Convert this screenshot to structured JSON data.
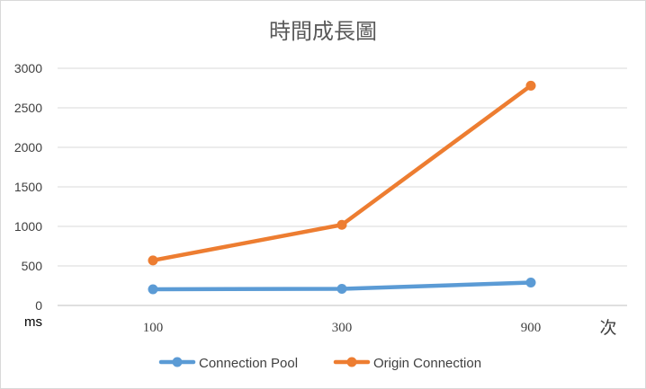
{
  "chart_data": {
    "type": "line",
    "title": "時間成長圖",
    "ylabel": "ms",
    "xlabel": "次",
    "categories": [
      "100",
      "300",
      "900"
    ],
    "ylim": [
      0,
      3000
    ],
    "yticks": [
      0,
      500,
      1000,
      1500,
      2000,
      2500,
      3000
    ],
    "grid": true,
    "legend_position": "bottom",
    "series": [
      {
        "name": "Connection Pool",
        "color": "#5b9bd5",
        "values": [
          205,
          210,
          290
        ]
      },
      {
        "name": "Origin Connection",
        "color": "#ed7d31",
        "values": [
          570,
          1020,
          2780
        ]
      }
    ]
  }
}
